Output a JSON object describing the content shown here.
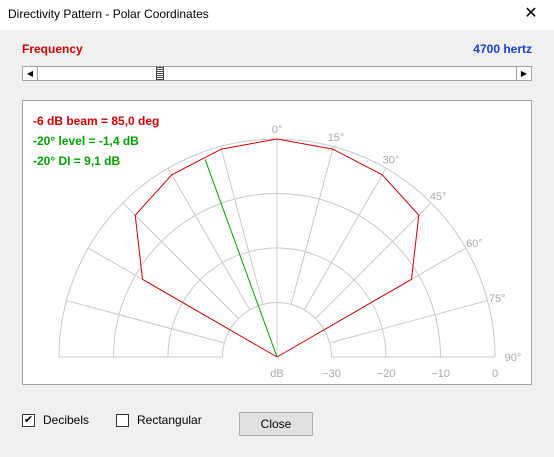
{
  "window": {
    "title": "Directivity Pattern - Polar Coordinates",
    "close_glyph": "✕"
  },
  "frequency": {
    "label": "Frequency",
    "value": "4700 hertz",
    "slider_fraction": 0.25
  },
  "info": {
    "beam": "-6 dB beam = 85,0 deg",
    "level": "-20° level = -1,4 dB",
    "di": "-20° DI = 9,1 dB",
    "colors": {
      "beam": "#cc0000",
      "level": "#00a000",
      "di": "#00a000"
    }
  },
  "chart_data": {
    "type": "polar",
    "angle_labels": [
      "0°",
      "15°",
      "30°",
      "45°",
      "60°",
      "75°",
      "90°"
    ],
    "angles_deg": [
      0,
      15,
      30,
      45,
      60,
      75,
      90
    ],
    "radial_labels": [
      "dB",
      "−30",
      "−20",
      "−10",
      "0"
    ],
    "radial_range_db": [
      -40,
      0
    ],
    "pattern": {
      "color": "#cc0000",
      "points": [
        {
          "angle": -60,
          "db": -11.5
        },
        {
          "angle": -45,
          "db": -3.2
        },
        {
          "angle": -30,
          "db": -1.4
        },
        {
          "angle": -15,
          "db": -0.5
        },
        {
          "angle": 0,
          "db": 0
        },
        {
          "angle": 15,
          "db": -0.5
        },
        {
          "angle": 30,
          "db": -1.4
        },
        {
          "angle": 45,
          "db": -3.2
        },
        {
          "angle": 60,
          "db": -11.5
        }
      ]
    },
    "marker": {
      "color": "#00a000",
      "angle": -20,
      "db": -1.4
    }
  },
  "options": {
    "decibels_label": "Decibels",
    "decibels_checked": true,
    "rectangular_label": "Rectangular",
    "rectangular_checked": false
  },
  "buttons": {
    "close": "Close"
  }
}
